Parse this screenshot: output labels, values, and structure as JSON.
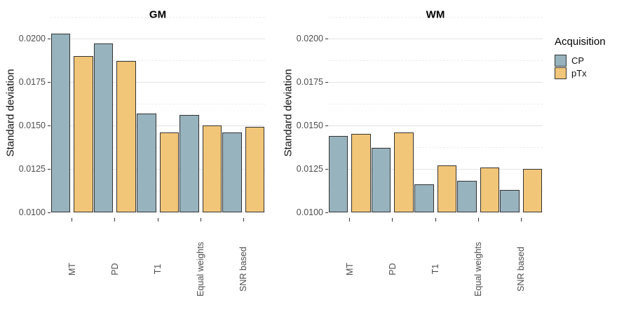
{
  "legend": {
    "title": "Acquisition",
    "position": "right",
    "items": [
      {
        "label": "CP",
        "color": "#97b3be"
      },
      {
        "label": "pTx",
        "color": "#f2c678"
      }
    ]
  },
  "colors": {
    "cp_fill": "#97b3be",
    "ptx_fill": "#f2c678",
    "bar_border": "#333333",
    "grid_major": "#e3e3e3",
    "grid_minor": "#ececec",
    "tick_text": "#4d4d4d",
    "background": "#ffffff"
  },
  "chart_data": [
    {
      "type": "bar",
      "title": "GM",
      "xlabel": "",
      "ylabel": "Standard deviation",
      "categories": [
        "MT",
        "PD",
        "T1",
        "Equal weights",
        "SNR based"
      ],
      "series": [
        {
          "name": "CP",
          "values": [
            0.0203,
            0.0197,
            0.0157,
            0.0156,
            0.0146
          ]
        },
        {
          "name": "pTx",
          "values": [
            0.019,
            0.0187,
            0.0146,
            0.015,
            0.0149
          ]
        }
      ],
      "ylim": [
        0.01,
        0.0214
      ],
      "yticks": [
        0.01,
        0.0125,
        0.015,
        0.0175,
        0.02
      ],
      "ytick_labels": [
        "0.0100",
        "0.0125",
        "0.0150",
        "0.0175",
        "0.0200"
      ],
      "grid": "major-solid, minor-dashed",
      "bars_baseline": 0.01
    },
    {
      "type": "bar",
      "title": "WM",
      "xlabel": "",
      "ylabel": "Standard deviation",
      "categories": [
        "MT",
        "PD",
        "T1",
        "Equal weights",
        "SNR based"
      ],
      "series": [
        {
          "name": "CP",
          "values": [
            0.0144,
            0.0137,
            0.0116,
            0.0118,
            0.0113
          ]
        },
        {
          "name": "pTx",
          "values": [
            0.0145,
            0.0146,
            0.0127,
            0.0126,
            0.0125
          ]
        }
      ],
      "ylim": [
        0.01,
        0.0214
      ],
      "yticks": [
        0.01,
        0.0125,
        0.015,
        0.0175,
        0.02
      ],
      "ytick_labels": [
        "0.0100",
        "0.0125",
        "0.0150",
        "0.0175",
        "0.0200"
      ],
      "grid": "major-solid, minor-dashed",
      "bars_baseline": 0.01
    }
  ]
}
